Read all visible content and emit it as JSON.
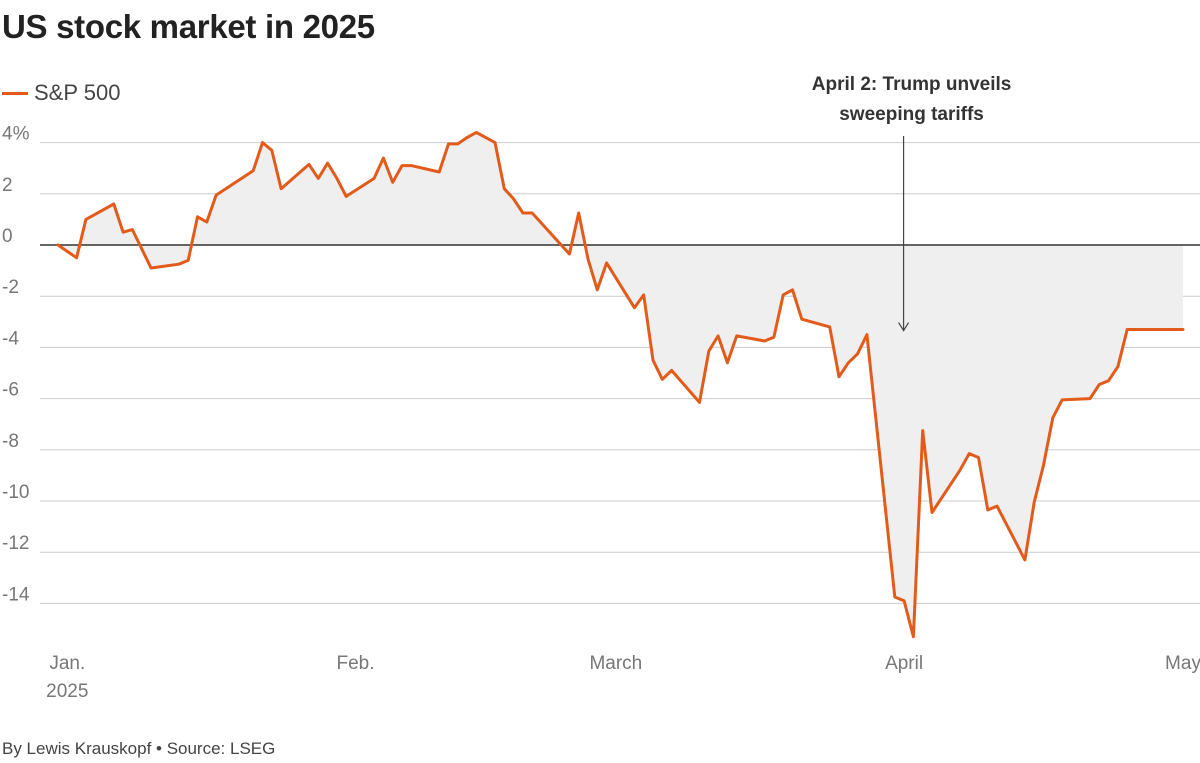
{
  "header": {
    "title": "US stock market in 2025"
  },
  "legend": {
    "label": "S&P 500",
    "color": "#e35b1a"
  },
  "footer": {
    "credit": "By Lewis Krauskopf • Source: LSEG"
  },
  "chart_data": {
    "type": "line",
    "title": "US stock market in 2025",
    "ylabel": "",
    "ylim": [
      -15.5,
      4.6
    ],
    "yticks": [
      {
        "value": 4,
        "label": "4%"
      },
      {
        "value": 2,
        "label": "2"
      },
      {
        "value": 0,
        "label": "0"
      },
      {
        "value": -2,
        "label": "-2"
      },
      {
        "value": -4,
        "label": "-4"
      },
      {
        "value": -6,
        "label": "-6"
      },
      {
        "value": -8,
        "label": "-8"
      },
      {
        "value": -10,
        "label": "-10"
      },
      {
        "value": -12,
        "label": "-12"
      },
      {
        "value": -14,
        "label": "-14"
      }
    ],
    "xticks": [
      {
        "day": 1,
        "label": "Jan.",
        "sublabel": "2025"
      },
      {
        "day": 32,
        "label": "Feb.",
        "sublabel": ""
      },
      {
        "day": 60,
        "label": "March",
        "sublabel": ""
      },
      {
        "day": 91,
        "label": "April",
        "sublabel": ""
      },
      {
        "day": 121,
        "label": "May",
        "sublabel": ""
      }
    ],
    "xlim": [
      -1,
      122
    ],
    "colors": {
      "line": "#e35b1a",
      "fill": "#efefef",
      "grid": "#cccccc",
      "zero": "#333333"
    },
    "annotation": {
      "day": 91,
      "value": -3.5,
      "lines": [
        "April 2: Trump unveils",
        "sweeping tariffs"
      ]
    },
    "series": [
      {
        "name": "S&P 500",
        "x": [
          0,
          2,
          3,
          6,
          7,
          8,
          10,
          13,
          14,
          15,
          16,
          17,
          21,
          22,
          23,
          24,
          27,
          28,
          29,
          30,
          31,
          34,
          35,
          36,
          37,
          38,
          41,
          42,
          43,
          44,
          45,
          47,
          48,
          49,
          50,
          51,
          55,
          56,
          57,
          58,
          59,
          62,
          63,
          64,
          65,
          66,
          69,
          70,
          71,
          72,
          73,
          76,
          77,
          78,
          79,
          80,
          83,
          84,
          85,
          86,
          87,
          90,
          91,
          92,
          93,
          94,
          97,
          98,
          99,
          100,
          101,
          104,
          105,
          106,
          107,
          108,
          111,
          112,
          113,
          114,
          115,
          118,
          119,
          120,
          121
        ],
        "values": [
          0.0,
          -0.5,
          1.0,
          1.6,
          0.5,
          0.6,
          -0.9,
          -0.75,
          -0.6,
          1.1,
          0.9,
          1.95,
          2.9,
          4.0,
          3.7,
          2.2,
          3.15,
          2.6,
          3.2,
          2.6,
          1.9,
          2.6,
          3.4,
          2.45,
          3.1,
          3.1,
          2.85,
          3.95,
          3.95,
          4.2,
          4.4,
          4.0,
          2.2,
          1.8,
          1.25,
          1.25,
          -0.35,
          1.25,
          -0.55,
          -1.75,
          -0.7,
          -2.45,
          -1.95,
          -4.5,
          -5.25,
          -4.9,
          -6.15,
          -4.15,
          -3.55,
          -4.6,
          -3.55,
          -3.75,
          -3.6,
          -1.95,
          -1.75,
          -2.9,
          -3.2,
          -5.15,
          -4.6,
          -4.25,
          -3.5,
          -13.75,
          -13.9,
          -15.3,
          -7.25,
          -10.45,
          -8.8,
          -8.15,
          -8.3,
          -10.35,
          -10.2,
          -12.3,
          -10.05,
          -8.6,
          -6.75,
          -6.05,
          -6.0,
          -5.45,
          -5.3,
          -4.75,
          -3.3,
          -3.3,
          -3.3,
          -3.3,
          -3.3
        ]
      }
    ]
  }
}
